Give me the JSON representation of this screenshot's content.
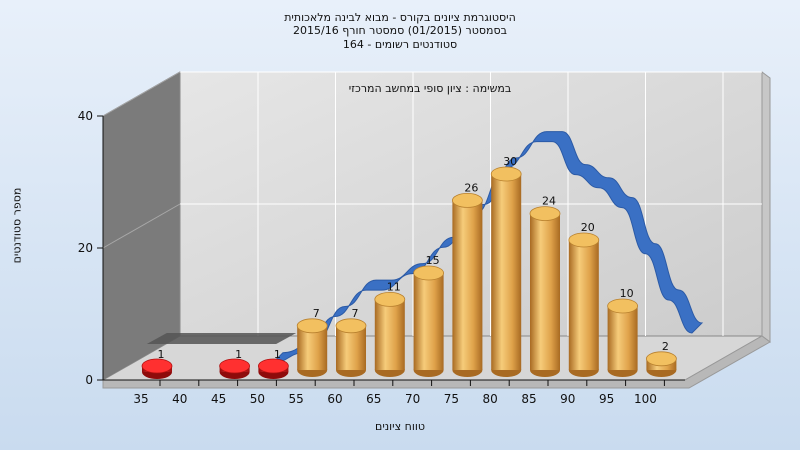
{
  "title_lines": [
    "היסטוגרמת ציונים בקורס - מבוא לבינה מלאכותית",
    "בסמסטר  (01/2015)  סמסטר חורף 2015/16",
    "סטודנטים רשומים - 164"
  ],
  "colors": {
    "bar": "#e0a64a",
    "bar_low": "#dd1a1a",
    "curve": "#3a70c4",
    "back_wall": "#d4d4d4",
    "side_wall": "#7b7b7b",
    "floor": "#d7d7d7"
  },
  "chart_data": {
    "type": "bar",
    "subtitle": "במשימה : ציון סופי במחשב המרכזי",
    "xlabel": "טווח ציונים",
    "ylabel": "מספר סטודנטים",
    "categories": [
      "35",
      "40",
      "45",
      "50",
      "55",
      "60",
      "65",
      "70",
      "75",
      "80",
      "85",
      "90",
      "95",
      "100"
    ],
    "values": [
      1,
      null,
      1,
      1,
      7,
      7,
      11,
      15,
      26,
      30,
      24,
      20,
      10,
      2
    ],
    "value_labels": [
      "1",
      "",
      "1",
      "1",
      "7",
      "7",
      "11",
      "15",
      "26",
      "30",
      "24",
      "20",
      "10",
      "2"
    ],
    "low_score_categories": [
      "35",
      "45",
      "50"
    ],
    "yticks": [
      0,
      20,
      40
    ],
    "ylim": [
      0,
      40
    ],
    "grid": true,
    "curve": {
      "type": "smoothed trend",
      "points": [
        [
          52,
          0.5
        ],
        [
          56,
          2
        ],
        [
          60,
          7.5
        ],
        [
          64,
          11.5
        ],
        [
          66,
          11.5
        ],
        [
          70,
          14
        ],
        [
          74,
          18
        ],
        [
          78,
          23
        ],
        [
          82,
          30
        ],
        [
          86,
          34
        ],
        [
          88,
          34
        ],
        [
          91,
          29
        ],
        [
          94,
          27
        ],
        [
          97,
          24
        ],
        [
          100,
          17
        ],
        [
          103,
          10
        ],
        [
          106,
          5
        ]
      ]
    },
    "ghost_bar_range": [
      40,
      55
    ]
  }
}
